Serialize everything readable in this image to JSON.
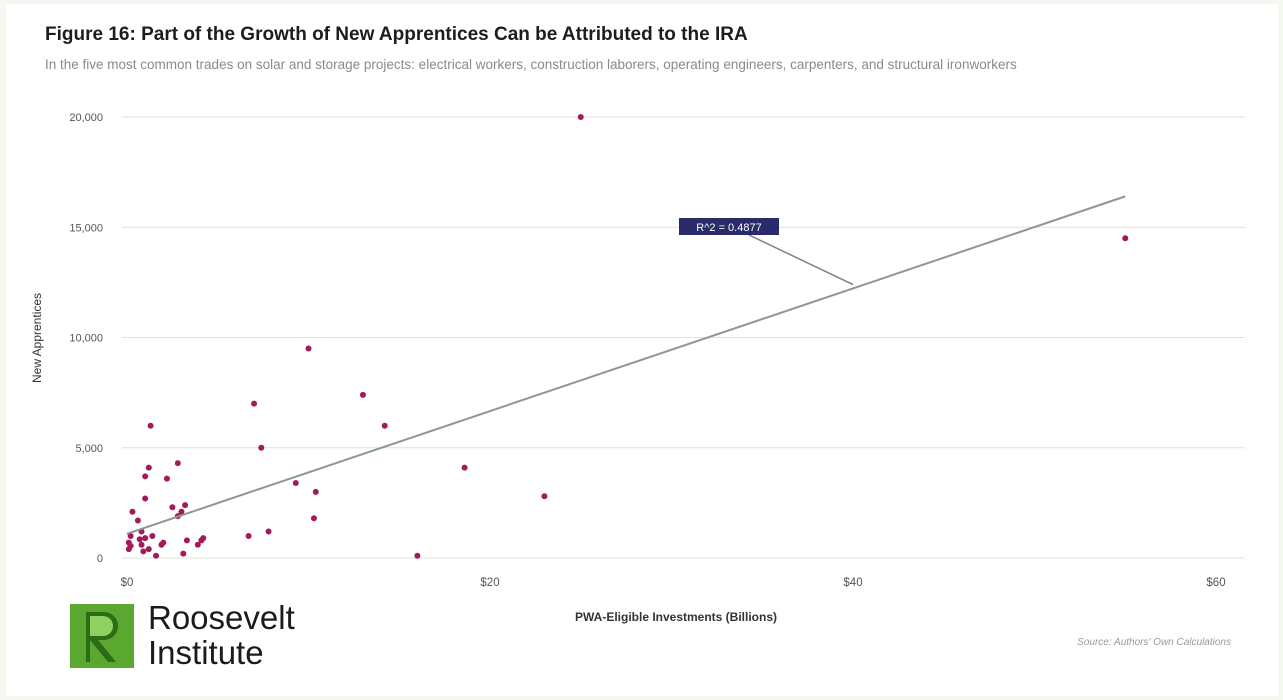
{
  "header": {
    "title": "Figure 16: Part of the Growth of New Apprentices Can be Attributed to the IRA",
    "subtitle": "In the five most common trades on solar and storage projects: electrical workers, construction laborers, operating engineers, carpenters, and structural ironworkers"
  },
  "logo": {
    "line1": "Roosevelt",
    "line2": "Institute",
    "mark_color": "#5aa830"
  },
  "source": "Source: Authors' Own Calculations",
  "chart_data": {
    "type": "scatter",
    "xlabel": "PWA-Eligible Investments (Billions)",
    "ylabel": "New Apprentices",
    "xlim": [
      0,
      60
    ],
    "ylim": [
      0,
      20000
    ],
    "x_ticks": [
      0,
      20,
      40,
      60
    ],
    "x_tick_labels": [
      "$0",
      "$20",
      "$40",
      "$60"
    ],
    "y_ticks": [
      0,
      5000,
      10000,
      15000,
      20000
    ],
    "y_tick_labels": [
      "0",
      "5,000",
      "10,000",
      "15,000",
      "20,000"
    ],
    "grid": "horizontal",
    "point_color": "#a3195b",
    "trendline": {
      "x": [
        0,
        55
      ],
      "y": [
        1100,
        16400
      ],
      "color": "#8a9a8f",
      "annotation": "R^2 = 0.4877",
      "annotation_at": [
        40,
        12400
      ]
    },
    "points": [
      [
        0.1,
        400
      ],
      [
        0.1,
        700
      ],
      [
        0.2,
        550
      ],
      [
        0.2,
        1000
      ],
      [
        0.3,
        2100
      ],
      [
        0.6,
        1700
      ],
      [
        0.7,
        850
      ],
      [
        0.8,
        600
      ],
      [
        0.8,
        1200
      ],
      [
        0.9,
        300
      ],
      [
        1.0,
        900
      ],
      [
        1.0,
        2700
      ],
      [
        1.0,
        3700
      ],
      [
        1.2,
        4100
      ],
      [
        1.2,
        400
      ],
      [
        1.3,
        6000
      ],
      [
        1.4,
        1000
      ],
      [
        1.6,
        100
      ],
      [
        1.9,
        600
      ],
      [
        2.0,
        700
      ],
      [
        2.2,
        3600
      ],
      [
        2.5,
        2300
      ],
      [
        2.8,
        4300
      ],
      [
        2.8,
        1900
      ],
      [
        3.0,
        2100
      ],
      [
        3.1,
        200
      ],
      [
        3.2,
        2400
      ],
      [
        3.3,
        800
      ],
      [
        3.9,
        600
      ],
      [
        4.1,
        800
      ],
      [
        4.2,
        900
      ],
      [
        6.7,
        1000
      ],
      [
        7.0,
        7000
      ],
      [
        7.4,
        5000
      ],
      [
        7.8,
        1200
      ],
      [
        9.3,
        3400
      ],
      [
        10.0,
        9500
      ],
      [
        10.3,
        1800
      ],
      [
        10.4,
        3000
      ],
      [
        13.0,
        7400
      ],
      [
        14.2,
        6000
      ],
      [
        16.0,
        100
      ],
      [
        18.6,
        4100
      ],
      [
        23.0,
        2800
      ],
      [
        25.0,
        20000
      ],
      [
        55.0,
        14500
      ]
    ]
  }
}
